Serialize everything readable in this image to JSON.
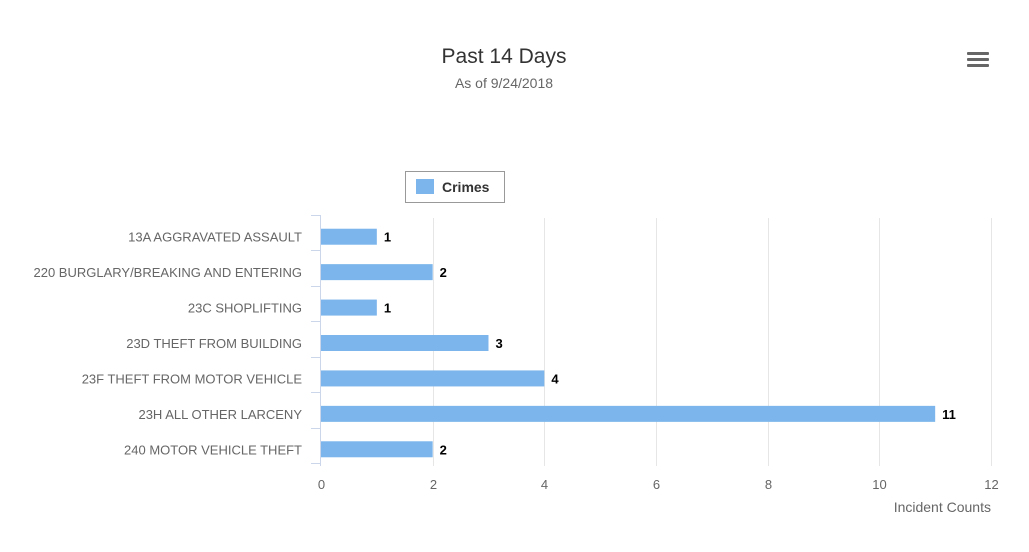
{
  "chart_data": {
    "type": "bar",
    "orientation": "horizontal",
    "title": "Past 14 Days",
    "subtitle": "As of 9/24/2018",
    "xlabel": "Incident Counts",
    "ylabel": "",
    "categories": [
      "13A AGGRAVATED ASSAULT",
      "220 BURGLARY/BREAKING AND ENTERING",
      "23C SHOPLIFTING",
      "23D THEFT FROM BUILDING",
      "23F THEFT FROM MOTOR VEHICLE",
      "23H ALL OTHER LARCENY",
      "240 MOTOR VEHICLE THEFT"
    ],
    "series": [
      {
        "name": "Crimes",
        "values": [
          1,
          2,
          1,
          3,
          4,
          11,
          2
        ],
        "color": "#7cb5ec"
      }
    ],
    "xlim": [
      0,
      12
    ],
    "xticks": [
      0,
      2,
      4,
      6,
      8,
      10,
      12
    ],
    "grid": true,
    "data_labels": true,
    "legend": {
      "position": "top-left",
      "entries": [
        "Crimes"
      ]
    }
  },
  "toolbar": {
    "menu_icon": "hamburger-menu-icon"
  },
  "colors": {
    "bar": "#7cb5ec",
    "grid": "#e6e6e6",
    "axis": "#ccd6eb",
    "title": "#333333",
    "subtitle": "#666666",
    "tick_label": "#666666",
    "data_label": "#000000",
    "menu": "#666666"
  }
}
